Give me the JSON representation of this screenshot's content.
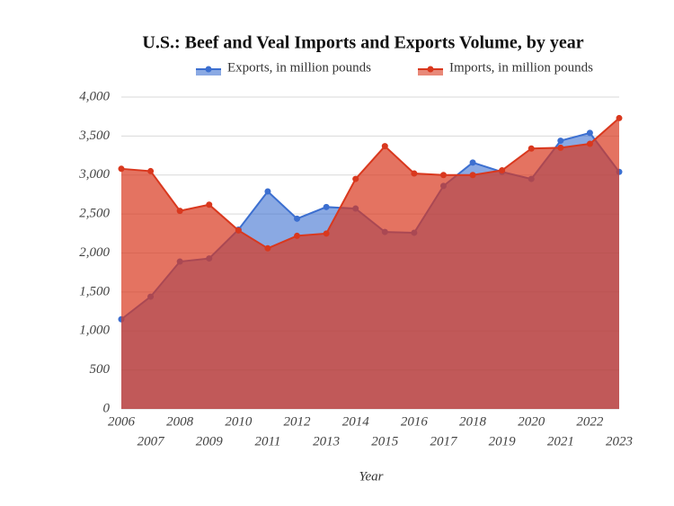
{
  "chart_data": {
    "type": "area",
    "title": "U.S.: Beef and Veal Imports and Exports Volume, by year",
    "x_label": "Year",
    "categories": [
      "2006",
      "2007",
      "2008",
      "2009",
      "2010",
      "2011",
      "2012",
      "2013",
      "2014",
      "2015",
      "2016",
      "2017",
      "2018",
      "2019",
      "2020",
      "2021",
      "2022",
      "2023"
    ],
    "series": [
      {
        "name": "Exports, in million pounds",
        "color": "#3c6fd0",
        "values": [
          1150,
          1440,
          1890,
          1930,
          2300,
          2790,
          2440,
          2590,
          2570,
          2270,
          2260,
          2860,
          3160,
          3040,
          2950,
          3440,
          3540,
          3040
        ]
      },
      {
        "name": "Imports, in million pounds",
        "color": "#d9381e",
        "values": [
          3080,
          3050,
          2540,
          2620,
          2290,
          2060,
          2220,
          2250,
          2950,
          3370,
          3020,
          3000,
          3000,
          3060,
          3340,
          3350,
          3400,
          3730
        ]
      }
    ],
    "ylim": [
      0,
      4000
    ],
    "yticks": [
      0,
      500,
      {
        "value": 1000,
        "label": "1,000"
      },
      {
        "value": 1500,
        "label": "1,500"
      },
      {
        "value": 2000,
        "label": "2,000"
      },
      {
        "value": 2500,
        "label": "2,500"
      },
      {
        "value": 3000,
        "label": "3,000"
      },
      {
        "value": 3500,
        "label": "3,500"
      },
      {
        "value": 4000,
        "label": "4,000"
      }
    ],
    "grid": true
  }
}
